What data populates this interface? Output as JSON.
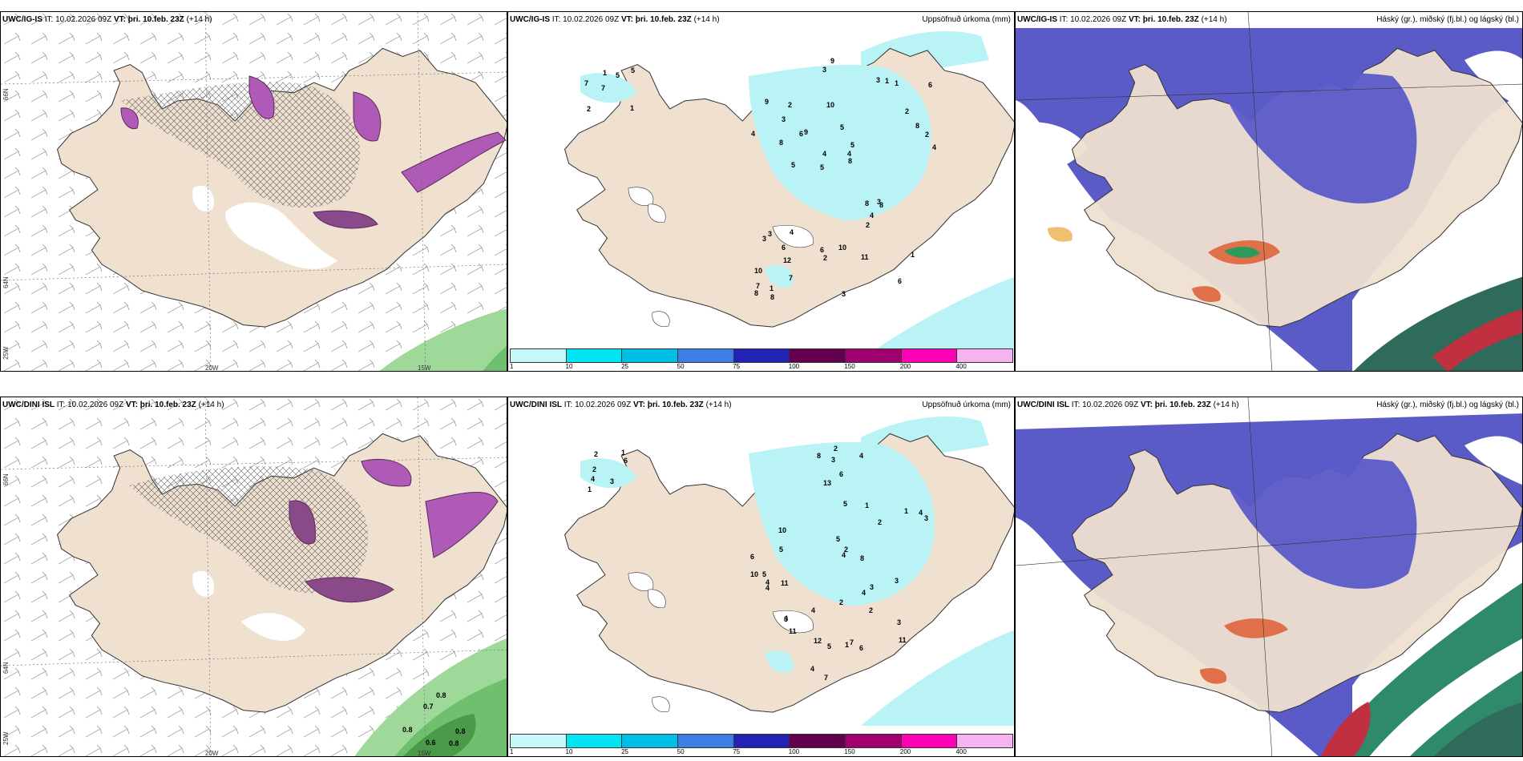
{
  "colors": {
    "land": "#efe0d0",
    "precip": "#b9f3f5",
    "high_cloud": "#5b5bc8",
    "snow": "#b05ab8",
    "rain_green": "#9fd99a",
    "dark_sea_cloud": "#2f6b5b"
  },
  "rows": [
    {
      "wind_panel": {
        "model": "UWC/IG-IS",
        "it_label": "IT:",
        "it_value": "10.02.2026 09Z",
        "vt_label": "VT:",
        "vt_value": "þri. 10.feb. 23Z",
        "lead": "(+14 h)",
        "lon_labels": [
          "20W",
          "15W"
        ],
        "lat_labels": [
          "66N",
          "64N",
          "25W"
        ],
        "value_labels": []
      },
      "precip_panel": {
        "model": "UWC/IG-IS",
        "it_label": "IT:",
        "it_value": "10.02.2026 09Z",
        "vt_label": "VT:",
        "vt_value": "þri. 10.feb. 23Z",
        "lead": "(+14 h)",
        "title": "Uppsöfnuð úrkoma (mm)",
        "numbers": [
          "1",
          "7",
          "5",
          "7",
          "5",
          "2",
          "1",
          "5",
          "3",
          "9",
          "10",
          "12",
          "10",
          "5",
          "8",
          "9",
          "3",
          "4",
          "8",
          "8",
          "5",
          "6",
          "4",
          "2",
          "3",
          "4",
          "6",
          "1",
          "3",
          "3",
          "6",
          "8",
          "2",
          "7",
          "2",
          "4",
          "7",
          "2",
          "8",
          "3",
          "2",
          "6",
          "4",
          "11",
          "6",
          "8",
          "8",
          "10",
          "1",
          "9",
          "5",
          "4",
          "3",
          "1",
          "1"
        ]
      },
      "cloud_panel": {
        "model": "UWC/IG-IS",
        "it_label": "IT:",
        "it_value": "10.02.2026 09Z",
        "vt_label": "VT:",
        "vt_value": "þri. 10.feb. 23Z",
        "lead": "(+14 h)",
        "title": "Háský (gr.), miðský (fj.bl.) og lágský (bl.)"
      }
    },
    {
      "wind_panel": {
        "model": "UWC/DINI ISL",
        "it_label": "IT:",
        "it_value": "10.02.2026 09Z",
        "vt_label": "VT:",
        "vt_value": "þri. 10.feb. 23Z",
        "lead": "(+14",
        "lead_wrap": "h)",
        "lon_labels": [
          "20W",
          "15W"
        ],
        "lat_labels": [
          "66N",
          "64N",
          "25W"
        ],
        "value_labels": [
          "0.8",
          "0.7",
          "0.8",
          "0.8",
          "0.6",
          "0.8"
        ]
      },
      "precip_panel": {
        "model": "UWC/DINI ISL",
        "it_label": "IT:",
        "it_value": "10.02.2026 09Z",
        "vt_label": "VT:",
        "vt_value": "þri. 10.feb. 23Z",
        "lead": "(+14 h)",
        "title": "Uppsöfnuð úrkoma (mm)",
        "numbers": [
          "1",
          "1",
          "2",
          "6",
          "3",
          "2",
          "4",
          "4",
          "1",
          "2",
          "5",
          "2",
          "2",
          "4",
          "7",
          "8",
          "11",
          "6",
          "3",
          "4",
          "6",
          "3",
          "13",
          "2",
          "5",
          "12",
          "4",
          "4",
          "5",
          "3",
          "10",
          "11",
          "7",
          "2",
          "3",
          "4",
          "4",
          "8",
          "1",
          "3",
          "3",
          "6",
          "5",
          "11",
          "10",
          "5",
          "4",
          "1",
          "4"
        ]
      },
      "cloud_panel": {
        "model": "UWC/DINI ISL",
        "it_label": "IT:",
        "it_value": "10.02.2026 09Z",
        "vt_label": "VT:",
        "vt_value": "þri. 10.feb. 23Z",
        "lead": "(+14 h)",
        "title": "Háský (gr.), miðský (fj.bl.) og lágský (bl.)"
      }
    }
  ],
  "colorbar": {
    "ticks": [
      "1",
      "10",
      "25",
      "50",
      "75",
      "100",
      "150",
      "200",
      "400"
    ],
    "colors": [
      "#c6f7f9",
      "#00e5ef",
      "#00bfe6",
      "#3b7fe6",
      "#2222b4",
      "#640050",
      "#a0006e",
      "#ff00b4",
      "#f5b4f0"
    ]
  }
}
